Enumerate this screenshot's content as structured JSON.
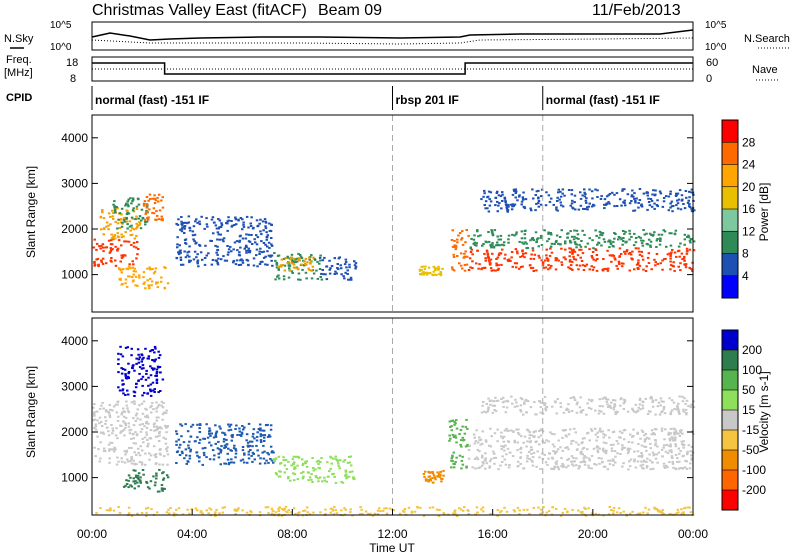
{
  "header": {
    "title": "Christmas Valley East (fitACF)",
    "beam": "Beam 09",
    "date": "11/Feb/2013"
  },
  "top_panels": {
    "nsky_label": "N.Sky",
    "nsearch_label": "N.Search",
    "noise_ticks": [
      "10^5",
      "10^0"
    ],
    "freq_label_1": "Freq.",
    "freq_label_2": "[MHz]",
    "freq_ticks": [
      "18",
      "8"
    ],
    "nave_label": "Nave",
    "nave_ticks": [
      "60",
      "0"
    ],
    "cpid_label": "CPID",
    "cpid_segments": [
      {
        "label": "normal (fast) -151 IF",
        "start_h": 0,
        "end_h": 12
      },
      {
        "label": "rbsp 201 IF",
        "start_h": 12,
        "end_h": 18
      },
      {
        "label": "normal (fast) -151 IF",
        "start_h": 18,
        "end_h": 24
      }
    ],
    "freq_steps": [
      {
        "start_h": 0,
        "end_h": 2.9,
        "level": "high"
      },
      {
        "start_h": 2.9,
        "end_h": 14.9,
        "level": "low"
      },
      {
        "start_h": 14.9,
        "end_h": 24,
        "level": "high"
      }
    ]
  },
  "axes": {
    "xlabel": "Time UT",
    "x_ticks": [
      "00:00",
      "04:00",
      "08:00",
      "12:00",
      "16:00",
      "20:00",
      "00:00"
    ],
    "ylabel": "Slant Range [km]",
    "y_ticks": [
      "4000",
      "3000",
      "2000",
      "1000"
    ]
  },
  "colorbars": {
    "power": {
      "label": "Power [dB]",
      "ticks": [
        "28",
        "24",
        "20",
        "16",
        "12",
        "8",
        "4"
      ],
      "colors": [
        "#ff0000",
        "#ff6a00",
        "#ffa500",
        "#e8c000",
        "#7ec8a0",
        "#2e8b57",
        "#1e50b4",
        "#0000ff"
      ]
    },
    "velocity": {
      "label": "Velocity [m s-1]",
      "ticks": [
        "200",
        "100",
        "50",
        "15",
        "-15",
        "-50",
        "-100",
        "-200"
      ],
      "colors": [
        "#0000cc",
        "#2e7d4f",
        "#56b44e",
        "#8ee05a",
        "#c8c8c8",
        "#f5c542",
        "#f08c00",
        "#ff6600",
        "#ff0000"
      ]
    }
  },
  "chart_data": {
    "type": "heatmap",
    "title": "Christmas Valley East (fitACF)",
    "xlabel": "Time UT",
    "ylabel": "Slant Range [km]",
    "xlim_hours": [
      0,
      24
    ],
    "ylim_km": [
      180,
      4500
    ],
    "power_blobs": [
      {
        "t0": 0.0,
        "t1": 1.8,
        "r0": 1200,
        "r1": 1800,
        "color": "#ff3300"
      },
      {
        "t0": 0.3,
        "t1": 2.0,
        "r0": 1800,
        "r1": 2500,
        "color": "#f5a000"
      },
      {
        "t0": 0.8,
        "t1": 2.2,
        "r0": 2000,
        "r1": 2700,
        "color": "#2e8b57"
      },
      {
        "t0": 2.0,
        "t1": 2.8,
        "r0": 2200,
        "r1": 2800,
        "color": "#ff6a00"
      },
      {
        "t0": 1.0,
        "t1": 3.0,
        "r0": 700,
        "r1": 1200,
        "color": "#ffa500"
      },
      {
        "t0": 3.3,
        "t1": 7.2,
        "r0": 1200,
        "r1": 2300,
        "color": "#1e50b4"
      },
      {
        "t0": 7.2,
        "t1": 9.2,
        "r0": 900,
        "r1": 1500,
        "color": "#2e8b57"
      },
      {
        "t0": 7.4,
        "t1": 8.8,
        "r0": 1100,
        "r1": 1400,
        "color": "#e8a000"
      },
      {
        "t0": 9.0,
        "t1": 10.5,
        "r0": 900,
        "r1": 1400,
        "color": "#1e50b4"
      },
      {
        "t0": 13.0,
        "t1": 14.0,
        "r0": 1000,
        "r1": 1200,
        "color": "#e8c000"
      },
      {
        "t0": 14.3,
        "t1": 15.0,
        "r0": 1100,
        "r1": 2000,
        "color": "#ff6a00"
      },
      {
        "t0": 15.0,
        "t1": 24.0,
        "r0": 1100,
        "r1": 1600,
        "color": "#ff3300"
      },
      {
        "t0": 15.0,
        "t1": 24.0,
        "r0": 1600,
        "r1": 2000,
        "color": "#2e8b57"
      },
      {
        "t0": 15.5,
        "t1": 24.0,
        "r0": 2400,
        "r1": 2900,
        "color": "#1e50b4"
      }
    ],
    "velocity_blobs": [
      {
        "t0": 0.0,
        "t1": 3.0,
        "r0": 1300,
        "r1": 2700,
        "color": "#c8c8c8"
      },
      {
        "t0": 1.0,
        "t1": 2.8,
        "r0": 2800,
        "r1": 3900,
        "color": "#0000cc"
      },
      {
        "t0": 1.2,
        "t1": 3.0,
        "r0": 700,
        "r1": 1200,
        "color": "#2e7d4f"
      },
      {
        "t0": 3.3,
        "t1": 7.2,
        "r0": 1300,
        "r1": 2200,
        "color": "#1e5bb0"
      },
      {
        "t0": 7.2,
        "t1": 10.5,
        "r0": 900,
        "r1": 1500,
        "color": "#8ee05a"
      },
      {
        "t0": 13.2,
        "t1": 14.0,
        "r0": 900,
        "r1": 1200,
        "color": "#f08c00"
      },
      {
        "t0": 14.2,
        "t1": 15.0,
        "r0": 1200,
        "r1": 2300,
        "color": "#56b44e"
      },
      {
        "t0": 15.0,
        "t1": 24.0,
        "r0": 1200,
        "r1": 2100,
        "color": "#c8c8c8"
      },
      {
        "t0": 15.5,
        "t1": 24.0,
        "r0": 2400,
        "r1": 2800,
        "color": "#c8c8c8"
      },
      {
        "t0": 0.0,
        "t1": 24.0,
        "r0": 180,
        "r1": 380,
        "color": "#f5c542"
      }
    ]
  }
}
